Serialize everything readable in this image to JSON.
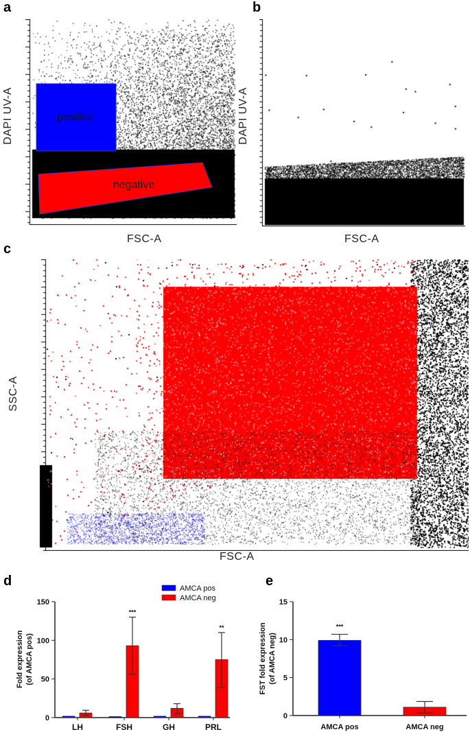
{
  "panels": {
    "a": {
      "label": "a",
      "xlabel": "FSC-A",
      "ylabel": "DAPI UV-A",
      "gates": {
        "positive": "positive",
        "negative": "negative"
      }
    },
    "b": {
      "label": "b",
      "xlabel": "FSC-A",
      "ylabel": "DAPI UV-A"
    },
    "c": {
      "label": "c",
      "xlabel": "FSC-A",
      "ylabel": "SSC-A"
    },
    "d": {
      "label": "d"
    },
    "e": {
      "label": "e"
    }
  },
  "colors": {
    "positive": "#0000ff",
    "negative": "#ff0000",
    "events": "#000000"
  },
  "chart_data": [
    {
      "type": "bar",
      "panel": "d",
      "categories": [
        "LH",
        "FSH",
        "GH",
        "PRL"
      ],
      "series": [
        {
          "name": "AMCA pos",
          "color": "#0000ff",
          "values": [
            1,
            0.5,
            1,
            1
          ]
        },
        {
          "name": "AMCA neg",
          "color": "#ff0000",
          "values": [
            6,
            93,
            12,
            75
          ],
          "err_low": [
            3,
            56,
            5,
            39
          ],
          "err_high": [
            9.5,
            130,
            18,
            110
          ]
        }
      ],
      "annotations": [
        "",
        "***",
        "",
        "**"
      ],
      "ylabel": "Fold expression (of AMCA pos)",
      "ylim": [
        0,
        150
      ],
      "yticks": [
        "0",
        "50",
        "100",
        "150"
      ],
      "legend": "top-right"
    },
    {
      "type": "bar",
      "panel": "e",
      "categories": [
        "AMCA pos",
        "AMCA neg"
      ],
      "values": [
        9.9,
        1.1
      ],
      "err_low": [
        9.2,
        0.35
      ],
      "err_high": [
        10.7,
        1.85
      ],
      "colors": [
        "#0000ff",
        "#ff0000"
      ],
      "annotations": [
        "***",
        ""
      ],
      "ylabel": "FST fold expression (of AMCA neg)",
      "ylim": [
        0,
        15
      ],
      "yticks": [
        "0",
        "5",
        "10",
        "15"
      ]
    }
  ]
}
